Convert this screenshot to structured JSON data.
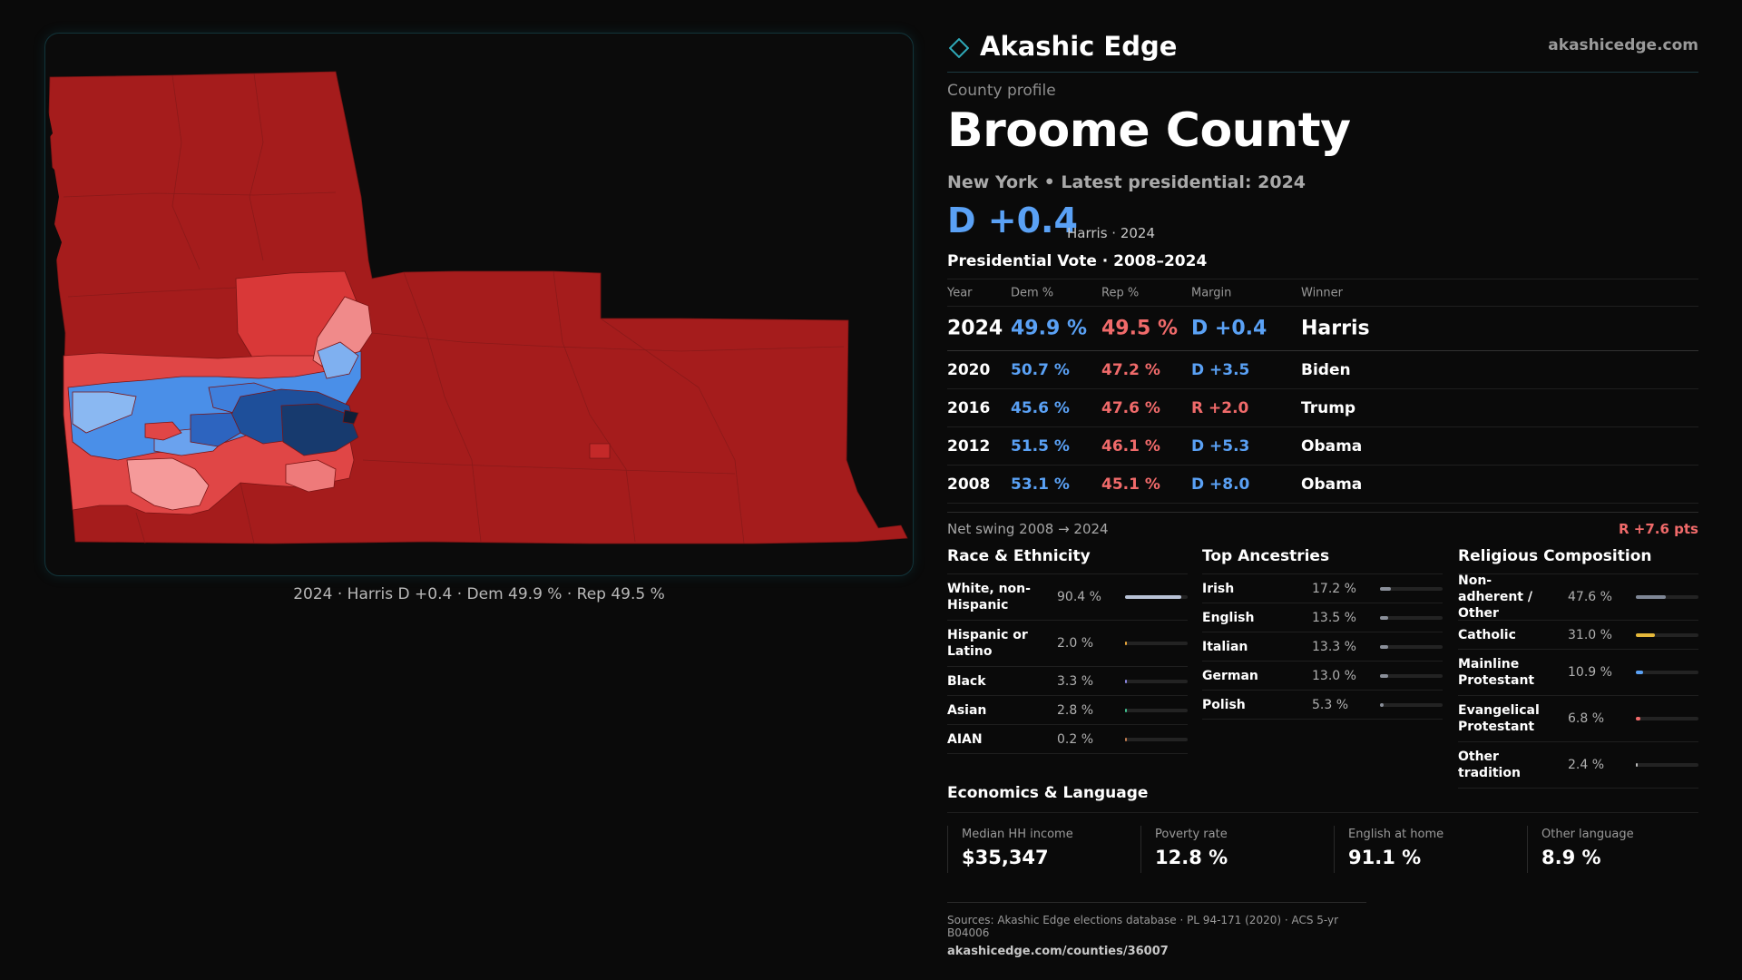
{
  "brand": {
    "name": "Akashic Edge",
    "url": "akashicedge.com"
  },
  "colors": {
    "dem": "#5aa1f5",
    "rep": "#f06a6a",
    "accent": "#2fa9b8"
  },
  "profile": {
    "kicker": "County profile",
    "title": "Broome County",
    "subtitle": "New York  • Latest presidential: 2024",
    "margin": "D +0.4",
    "margin_note": "Harris · 2024"
  },
  "map": {
    "caption": "2024 · Harris D +0.4 · Dem 49.9 % · Rep 49.5 %"
  },
  "votes": {
    "title": "Presidential Vote · 2008–2024",
    "headers": {
      "year": "Year",
      "dem": "Dem %",
      "rep": "Rep %",
      "margin": "Margin",
      "winner": "Winner"
    },
    "rows": [
      {
        "year": "2024",
        "dem": "49.9 %",
        "rep": "49.5 %",
        "margin": "D +0.4",
        "party": "D",
        "winner": "Harris"
      },
      {
        "year": "2020",
        "dem": "50.7 %",
        "rep": "47.2 %",
        "margin": "D +3.5",
        "party": "D",
        "winner": "Biden"
      },
      {
        "year": "2016",
        "dem": "45.6 %",
        "rep": "47.6 %",
        "margin": "R +2.0",
        "party": "R",
        "winner": "Trump"
      },
      {
        "year": "2012",
        "dem": "51.5 %",
        "rep": "46.1 %",
        "margin": "D +5.3",
        "party": "D",
        "winner": "Obama"
      },
      {
        "year": "2008",
        "dem": "53.1 %",
        "rep": "45.1 %",
        "margin": "D +8.0",
        "party": "D",
        "winner": "Obama"
      }
    ]
  },
  "swing": {
    "label": "Net swing 2008 → 2024",
    "value": "R +7.6 pts"
  },
  "race": {
    "title": "Race & Ethnicity",
    "items": [
      {
        "label": "White, non-Hispanic",
        "pct": "90.4 %",
        "value": 90.4,
        "color": "#b8c2d6"
      },
      {
        "label": "Hispanic or Latino",
        "pct": "2.0 %",
        "value": 2.0,
        "color": "#e8a53a"
      },
      {
        "label": "Black",
        "pct": "3.3 %",
        "value": 3.3,
        "color": "#8a86e0"
      },
      {
        "label": "Asian",
        "pct": "2.8 %",
        "value": 2.8,
        "color": "#3fbf8f"
      },
      {
        "label": "AIAN",
        "pct": "0.2 %",
        "value": 0.2,
        "color": "#c07b4f"
      }
    ]
  },
  "ancestry": {
    "title": "Top Ancestries",
    "items": [
      {
        "label": "Irish",
        "pct": "17.2 %",
        "value": 17.2,
        "color": "#8a8f99"
      },
      {
        "label": "English",
        "pct": "13.5 %",
        "value": 13.5,
        "color": "#8a8f99"
      },
      {
        "label": "Italian",
        "pct": "13.3 %",
        "value": 13.3,
        "color": "#8a8f99"
      },
      {
        "label": "German",
        "pct": "13.0 %",
        "value": 13.0,
        "color": "#8a8f99"
      },
      {
        "label": "Polish",
        "pct": "5.3 %",
        "value": 5.3,
        "color": "#8a8f99"
      }
    ]
  },
  "religion": {
    "title": "Religious Composition",
    "items": [
      {
        "label": "Non-adherent / Other",
        "pct": "47.6 %",
        "value": 47.6,
        "color": "#7f8796"
      },
      {
        "label": "Catholic",
        "pct": "31.0 %",
        "value": 31.0,
        "color": "#e5b83a"
      },
      {
        "label": "Mainline Protestant",
        "pct": "10.9 %",
        "value": 10.9,
        "color": "#5aa1f5"
      },
      {
        "label": "Evangelical Protestant",
        "pct": "6.8 %",
        "value": 6.8,
        "color": "#f06a6a"
      },
      {
        "label": "Other tradition",
        "pct": "2.4 %",
        "value": 2.4,
        "color": "#b9b9b9"
      }
    ]
  },
  "economics": {
    "title": "Economics & Language",
    "cells": [
      {
        "label": "Median HH income",
        "value": "$35,347"
      },
      {
        "label": "Poverty rate",
        "value": "12.8 %"
      },
      {
        "label": "English at home",
        "value": "91.1 %"
      },
      {
        "label": "Other language",
        "value": "8.9 %"
      }
    ]
  },
  "sources": {
    "text": "Sources: Akashic Edge elections database · PL 94-171 (2020) · ACS 5-yr B04006",
    "url": "akashicedge.com/counties/36007"
  }
}
